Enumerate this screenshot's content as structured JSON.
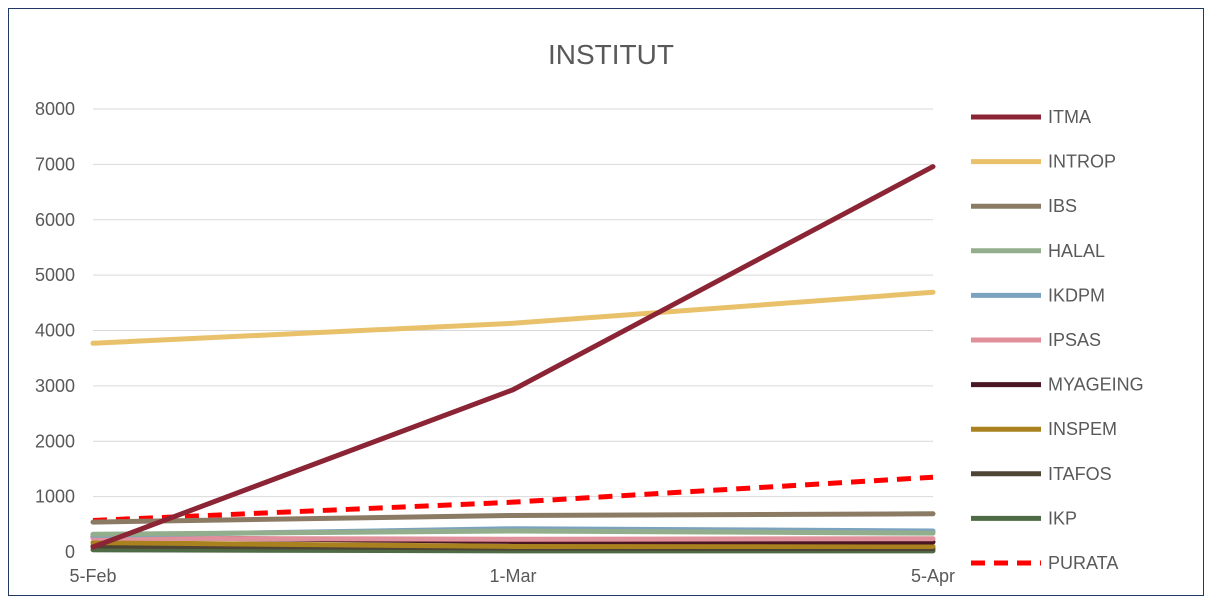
{
  "chart_data": {
    "type": "line",
    "title": "INSTITUT",
    "xlabel": "",
    "ylabel": "",
    "categories": [
      "5-Feb",
      "1-Mar",
      "5-Apr"
    ],
    "ylim": [
      0,
      8000
    ],
    "yticks": [
      0,
      1000,
      2000,
      3000,
      4000,
      5000,
      6000,
      7000,
      8000
    ],
    "grid": true,
    "legend_position": "right",
    "series": [
      {
        "name": "ITMA",
        "values": [
          90,
          2930,
          6960
        ],
        "color": "#8b2535",
        "dashed": false
      },
      {
        "name": "INTROP",
        "values": [
          3770,
          4130,
          4690
        ],
        "color": "#e8c16a",
        "dashed": false
      },
      {
        "name": "IBS",
        "values": [
          540,
          660,
          690
        ],
        "color": "#8c7b64",
        "dashed": false
      },
      {
        "name": "HALAL",
        "values": [
          320,
          380,
          340
        ],
        "color": "#93ae8c",
        "dashed": false
      },
      {
        "name": "IKDPM",
        "values": [
          300,
          420,
          380
        ],
        "color": "#7ba3c0",
        "dashed": false
      },
      {
        "name": "IPSAS",
        "values": [
          250,
          230,
          240
        ],
        "color": "#e0909a",
        "dashed": false
      },
      {
        "name": "MYAGEING",
        "values": [
          270,
          190,
          180
        ],
        "color": "#4a1623",
        "dashed": false
      },
      {
        "name": "INSPEM",
        "values": [
          170,
          100,
          100
        ],
        "color": "#a9821f",
        "dashed": false
      },
      {
        "name": "ITAFOS",
        "values": [
          110,
          70,
          60
        ],
        "color": "#4d4433",
        "dashed": false
      },
      {
        "name": "IKP",
        "values": [
          40,
          20,
          20
        ],
        "color": "#4f6b45",
        "dashed": false
      },
      {
        "name": "PURATA",
        "values": [
          570,
          900,
          1350
        ],
        "color": "#ff0000",
        "dashed": true
      }
    ]
  }
}
